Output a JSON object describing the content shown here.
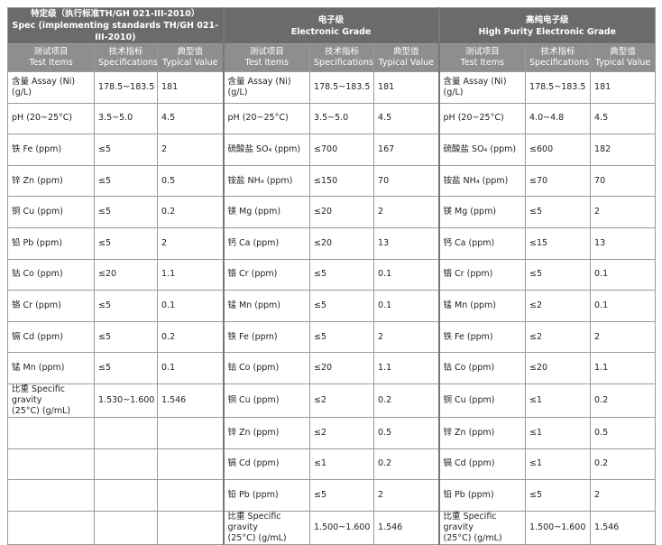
{
  "header": {
    "groups": [
      {
        "title": [
          "特定级（执行标准TH/GH 021-III-2010）",
          "Spec (implementing standards TH/GH 021-III-2010)"
        ],
        "columns": [
          [
            "测试项目",
            "Test Items"
          ],
          [
            "技术指标",
            "Specifications"
          ],
          [
            "典型值",
            "Typical Value"
          ]
        ]
      },
      {
        "title": [
          "电子级",
          "Electronic Grade"
        ],
        "columns": [
          [
            "测试项目",
            "Test Items"
          ],
          [
            "技术指标",
            "Specifications"
          ],
          [
            "典型值",
            "Typical Value"
          ]
        ]
      },
      {
        "title": [
          "高纯电子级",
          "High Purity Electronic Grade"
        ],
        "columns": [
          [
            "测试项目",
            "Test Items"
          ],
          [
            "技术指标",
            "Specifications"
          ],
          [
            "典型值",
            "Typical Value"
          ]
        ]
      }
    ]
  },
  "table": {
    "rows": [
      [
        "含量 Assay (Ni) (g/L)",
        "178.5~183.5",
        "181",
        "含量 Assay (Ni) (g/L)",
        "178.5~183.5",
        "181",
        "含量 Assay (Ni) (g/L)",
        "178.5~183.5",
        "181"
      ],
      [
        "pH (20~25°C)",
        "3.5~5.0",
        "4.5",
        "pH (20~25°C)",
        "3.5~5.0",
        "4.5",
        "pH (20~25°C)",
        "4.0~4.8",
        "4.5"
      ],
      [
        "铁 Fe (ppm)",
        "≤5",
        "2",
        "硫酸盐 SO₄ (ppm)",
        "≤700",
        "167",
        "硫酸盐 SO₄ (ppm)",
        "≤600",
        "182"
      ],
      [
        "锌 Zn (ppm)",
        "≤5",
        "0.5",
        "铵盐 NH₄ (ppm)",
        "≤150",
        "70",
        "铵盐 NH₄ (ppm)",
        "≤70",
        "70"
      ],
      [
        "铜 Cu (ppm)",
        "≤5",
        "0.2",
        "镁 Mg (ppm)",
        "≤20",
        "2",
        "镁 Mg (ppm)",
        "≤5",
        "2"
      ],
      [
        "铅 Pb (ppm)",
        "≤5",
        "2",
        "钙 Ca (ppm)",
        "≤20",
        "13",
        "钙 Ca (ppm)",
        "≤15",
        "13"
      ],
      [
        "钴 Co (ppm)",
        "≤20",
        "1.1",
        "铬 Cr (ppm)",
        "≤5",
        "0.1",
        "铬 Cr (ppm)",
        "≤5",
        "0.1"
      ],
      [
        "铬 Cr (ppm)",
        "≤5",
        "0.1",
        "锰 Mn (ppm)",
        "≤5",
        "0.1",
        "锰 Mn (ppm)",
        "≤2",
        "0.1"
      ],
      [
        "镉 Cd (ppm)",
        "≤5",
        "0.2",
        "铁 Fe (ppm)",
        "≤5",
        "2",
        "铁 Fe (ppm)",
        "≤2",
        "2"
      ],
      [
        "锰 Mn (ppm)",
        "≤5",
        "0.1",
        "钴 Co (ppm)",
        "≤20",
        "1.1",
        "钴 Co (ppm)",
        "≤20",
        "1.1"
      ],
      [
        [
          "比重 Specific gravity",
          "(25°C) (g/mL)"
        ],
        "1.530~1.600",
        "1.546",
        "铜 Cu (ppm)",
        "≤2",
        "0.2",
        "铜 Cu (ppm)",
        "≤1",
        "0.2"
      ],
      [
        null,
        null,
        null,
        "锌 Zn (ppm)",
        "≤2",
        "0.5",
        "锌 Zn (ppm)",
        "≤1",
        "0.5"
      ],
      [
        null,
        null,
        null,
        "镉 Cd (ppm)",
        "≤1",
        "0.2",
        "镉 Cd (ppm)",
        "≤1",
        "0.2"
      ],
      [
        null,
        null,
        null,
        "铅 Pb (ppm)",
        "≤5",
        "2",
        "铅 Pb (ppm)",
        "≤5",
        "2"
      ],
      [
        null,
        null,
        null,
        [
          "比重 Specific gravity",
          "(25°C) (g/mL)"
        ],
        "1.500~1.600",
        "1.546",
        [
          "比重 Specific gravity",
          "(25°C) (g/mL)"
        ],
        "1.500~1.600",
        "1.546"
      ]
    ]
  }
}
